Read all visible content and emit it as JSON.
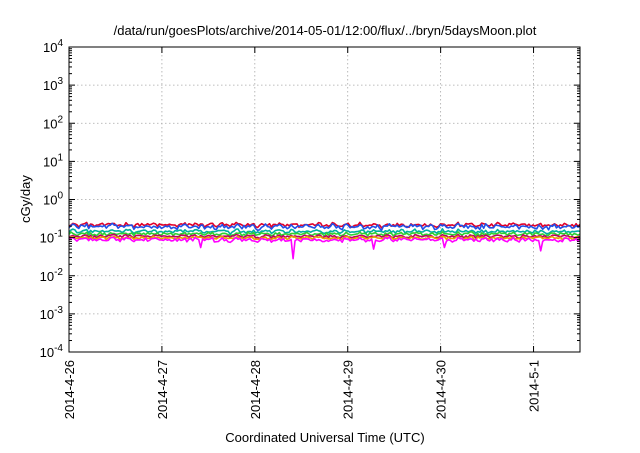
{
  "chart_data": {
    "type": "line",
    "title": "/data/run/goesPlots/archive/2014-05-01/12:00/flux/../bryn/5daysMoon.plot",
    "xlabel": "Coordinated Universal Time (UTC)",
    "ylabel": "cGy/day",
    "y_scale": "log",
    "ylim": [
      0.0001,
      10000
    ],
    "xlim": [
      "2014-04-26 00:00",
      "2014-05-01 12:00"
    ],
    "x_ticks": [
      "2014-4-26",
      "2014-4-27",
      "2014-4-28",
      "2014-4-29",
      "2014-4-30",
      "2014-5-1"
    ],
    "x_tick_dates": [
      "2014-04-26",
      "2014-04-27",
      "2014-04-28",
      "2014-04-29",
      "2014-04-30",
      "2014-05-01"
    ],
    "y_ticks": [
      0.0001,
      0.001,
      0.01,
      0.1,
      1,
      10,
      100,
      1000,
      10000
    ],
    "y_tick_labels": [
      {
        "base": "10",
        "exp": "-4"
      },
      {
        "base": "10",
        "exp": "-3"
      },
      {
        "base": "10",
        "exp": "-2"
      },
      {
        "base": "10",
        "exp": "-1"
      },
      {
        "base": "10",
        "exp": "0"
      },
      {
        "base": "10",
        "exp": "1"
      },
      {
        "base": "10",
        "exp": "2"
      },
      {
        "base": "10",
        "exp": "3"
      },
      {
        "base": "10",
        "exp": "4"
      }
    ],
    "grid": true,
    "legend": "none",
    "series": [
      {
        "color": "#e0002a",
        "base": 0.215,
        "noise": 0.2,
        "dips": []
      },
      {
        "color": "#2050e8",
        "base": 0.195,
        "noise": 0.24,
        "dips": []
      },
      {
        "color": "#00b0a0",
        "base": 0.145,
        "noise": 0.18,
        "dips": []
      },
      {
        "color": "#30d030",
        "base": 0.125,
        "noise": 0.16,
        "dips": []
      },
      {
        "color": "#c00060",
        "base": 0.108,
        "noise": 0.15,
        "dips": []
      },
      {
        "color": "#e8a000",
        "base": 0.098,
        "noise": 0.14,
        "dips": []
      },
      {
        "color": "#ff00ff",
        "base": 0.088,
        "noise": 0.2,
        "dips": [
          {
            "date": "2014-04-27 10:00",
            "value": 0.055
          },
          {
            "date": "2014-04-28 10:00",
            "value": 0.028
          },
          {
            "date": "2014-04-29 06:30",
            "value": 0.05
          },
          {
            "date": "2014-04-30 01:00",
            "value": 0.055
          },
          {
            "date": "2014-05-01 02:00",
            "value": 0.045
          }
        ]
      }
    ]
  }
}
